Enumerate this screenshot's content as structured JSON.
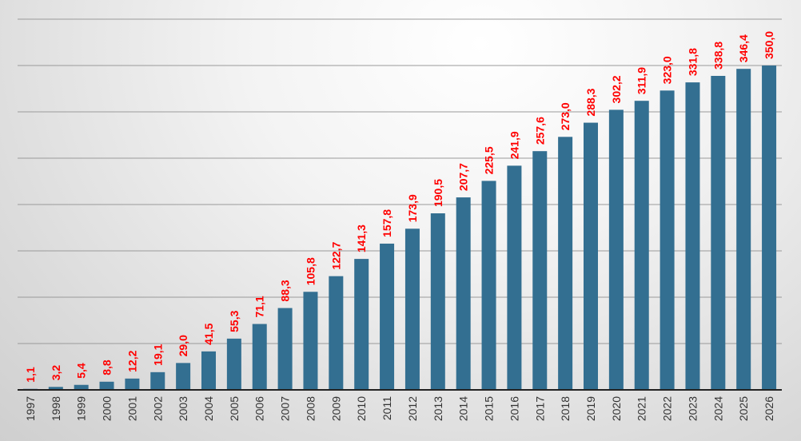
{
  "chart_data": {
    "type": "bar",
    "title": "",
    "xlabel": "",
    "ylabel": "",
    "ylim": [
      0,
      400
    ],
    "grid": true,
    "colors": {
      "bar": "#336f91",
      "data_label": "#ff0000"
    },
    "categories": [
      "1997",
      "1998",
      "1999",
      "2000",
      "2001",
      "2002",
      "2003",
      "2004",
      "2005",
      "2006",
      "2007",
      "2008",
      "2009",
      "2010",
      "2011",
      "2012",
      "2013",
      "2014",
      "2015",
      "2016",
      "2017",
      "2018",
      "2019",
      "2020",
      "2021",
      "2022",
      "2023",
      "2024",
      "2025",
      "2026"
    ],
    "values": [
      1.1,
      3.2,
      5.4,
      8.8,
      12.2,
      19.1,
      29.0,
      41.5,
      55.3,
      71.1,
      88.3,
      105.8,
      122.7,
      141.3,
      157.8,
      173.9,
      190.5,
      207.7,
      225.5,
      241.9,
      257.6,
      273.0,
      288.3,
      302.2,
      311.9,
      323.0,
      331.8,
      338.8,
      346.4,
      350.0
    ],
    "data_labels": [
      "1,1",
      "3,2",
      "5,4",
      "8,8",
      "12,2",
      "19,1",
      "29,0",
      "41,5",
      "55,3",
      "71,1",
      "88,3",
      "105,8",
      "122,7",
      "141,3",
      "157,8",
      "173,9",
      "190,5",
      "207,7",
      "225,5",
      "241,9",
      "257,6",
      "273,0",
      "288,3",
      "302,2",
      "311,9",
      "323,0",
      "331,8",
      "338,8",
      "346,4",
      "350,0"
    ]
  }
}
